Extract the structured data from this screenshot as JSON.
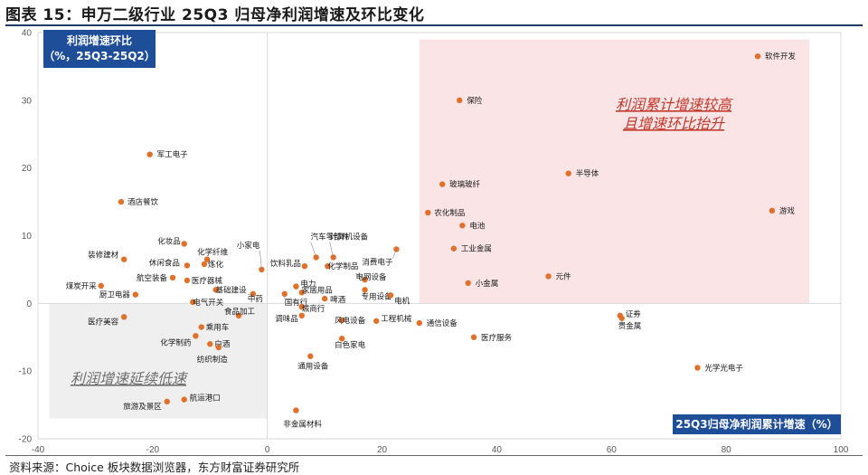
{
  "title": "图表 15：申万二级行业 25Q3 归母净利润增速及环比变化",
  "source": "资料来源：Choice 板块数据浏览器，东方财富证券研究所",
  "chart_data": {
    "type": "scatter",
    "xlim": [
      -40,
      100
    ],
    "ylim": [
      -20,
      40
    ],
    "x_ticks": [
      -40,
      -20,
      0,
      20,
      40,
      60,
      80,
      100
    ],
    "y_ticks": [
      -20,
      -10,
      0,
      10,
      20,
      30,
      40
    ],
    "y_axis_label": "利润增速环比（%，25Q3-25Q2）",
    "y_axis_label_lines": [
      "利润增速环比",
      "（%，25Q3-25Q2）"
    ],
    "x_axis_label": "25Q3归母净利润累计增速（%）",
    "quadrant_top_right": [
      "利润累计增速较高",
      "且增速环比抬升"
    ],
    "quadrant_bottom_left": "利润增速延续低速",
    "grid": false,
    "marker_color": "#e0702a",
    "points": [
      {
        "label": "软件开发",
        "x": 85.5,
        "y": 36.5
      },
      {
        "label": "保险",
        "x": 33.5,
        "y": 30.0
      },
      {
        "label": "半导体",
        "x": 52.5,
        "y": 19.2
      },
      {
        "label": "玻璃玻纤",
        "x": 30.5,
        "y": 17.6
      },
      {
        "label": "游戏",
        "x": 88.0,
        "y": 13.7
      },
      {
        "label": "农化制品",
        "x": 28.0,
        "y": 13.4
      },
      {
        "label": "电池",
        "x": 34.0,
        "y": 11.5
      },
      {
        "label": "工业金属",
        "x": 32.5,
        "y": 8.1
      },
      {
        "label": "元件",
        "x": 49.0,
        "y": 4.0
      },
      {
        "label": "小金属",
        "x": 35.0,
        "y": 3.0
      },
      {
        "label": "证券",
        "x": 61.5,
        "y": -1.8
      },
      {
        "label": "贵金属",
        "x": 61.8,
        "y": -2.2
      },
      {
        "label": "医疗服务",
        "x": 36.0,
        "y": -5.0
      },
      {
        "label": "光学光电子",
        "x": 75.0,
        "y": -9.5
      },
      {
        "label": "军工电子",
        "x": -20.5,
        "y": 22.0
      },
      {
        "label": "酒店餐饮",
        "x": -25.5,
        "y": 15.0
      },
      {
        "label": "化妆品",
        "x": -14.5,
        "y": 8.8
      },
      {
        "label": "装修建材",
        "x": -25.0,
        "y": 6.5
      },
      {
        "label": "化学纤维",
        "x": -10.5,
        "y": 6.5
      },
      {
        "label": "休闲食品",
        "x": -14.0,
        "y": 5.6
      },
      {
        "label": "炼化",
        "x": -11.0,
        "y": 5.8
      },
      {
        "label": "航空装备",
        "x": -16.5,
        "y": 3.8
      },
      {
        "label": "医疗器械",
        "x": -14.0,
        "y": 3.4
      },
      {
        "label": "煤炭开采",
        "x": -29.0,
        "y": 2.6
      },
      {
        "label": "基础建设",
        "x": -9.0,
        "y": 2.0
      },
      {
        "label": "厨卫电器",
        "x": -23.0,
        "y": 1.3
      },
      {
        "label": "电气开关",
        "x": -13.0,
        "y": 0.2
      },
      {
        "label": "小家电",
        "x": -1.0,
        "y": 5.0
      },
      {
        "label": "汽车零部件",
        "x": 8.5,
        "y": 6.8
      },
      {
        "label": "计算机设备",
        "x": 11.5,
        "y": 6.8
      },
      {
        "label": "饮料乳品",
        "x": 6.5,
        "y": 5.5
      },
      {
        "label": "化学制品",
        "x": 10.5,
        "y": 5.5
      },
      {
        "label": "消费电子",
        "x": 22.5,
        "y": 8.0
      },
      {
        "label": "电网设备",
        "x": 17.0,
        "y": 3.5
      },
      {
        "label": "电力",
        "x": 5.0,
        "y": 2.5
      },
      {
        "label": "家居用品",
        "x": 6.0,
        "y": 1.6
      },
      {
        "label": "啤酒",
        "x": 10.0,
        "y": 0.7
      },
      {
        "label": "专用设备",
        "x": 17.0,
        "y": 2.0
      },
      {
        "label": "电机",
        "x": 21.5,
        "y": 1.2
      },
      {
        "label": "国有行",
        "x": 3.0,
        "y": 1.4
      },
      {
        "label": "中药",
        "x": -2.5,
        "y": 1.4
      },
      {
        "label": "食品加工",
        "x": -5.0,
        "y": -1.8
      },
      {
        "label": "城商行",
        "x": 6.0,
        "y": -0.5
      },
      {
        "label": "调味品",
        "x": 6.0,
        "y": -1.8
      },
      {
        "label": "风电设备",
        "x": 13.0,
        "y": -2.5
      },
      {
        "label": "工程机械",
        "x": 19.0,
        "y": -2.6
      },
      {
        "label": "通信设备",
        "x": 26.5,
        "y": -2.9
      },
      {
        "label": "乘用车",
        "x": -11.5,
        "y": -3.5
      },
      {
        "label": "化学制药",
        "x": -12.5,
        "y": -4.8
      },
      {
        "label": "白色家电",
        "x": 13.0,
        "y": -5.2
      },
      {
        "label": "白酒",
        "x": -10.0,
        "y": -6.0
      },
      {
        "label": "纺织制造",
        "x": -8.5,
        "y": -6.5
      },
      {
        "label": "通用设备",
        "x": 7.5,
        "y": -7.8
      },
      {
        "label": "医疗美容",
        "x": -25.0,
        "y": -2.0
      },
      {
        "label": "航运港口",
        "x": -14.5,
        "y": -14.2
      },
      {
        "label": "旅游及景区",
        "x": -17.5,
        "y": -14.5
      },
      {
        "label": "非金属材料",
        "x": 5.0,
        "y": -15.8
      }
    ]
  }
}
